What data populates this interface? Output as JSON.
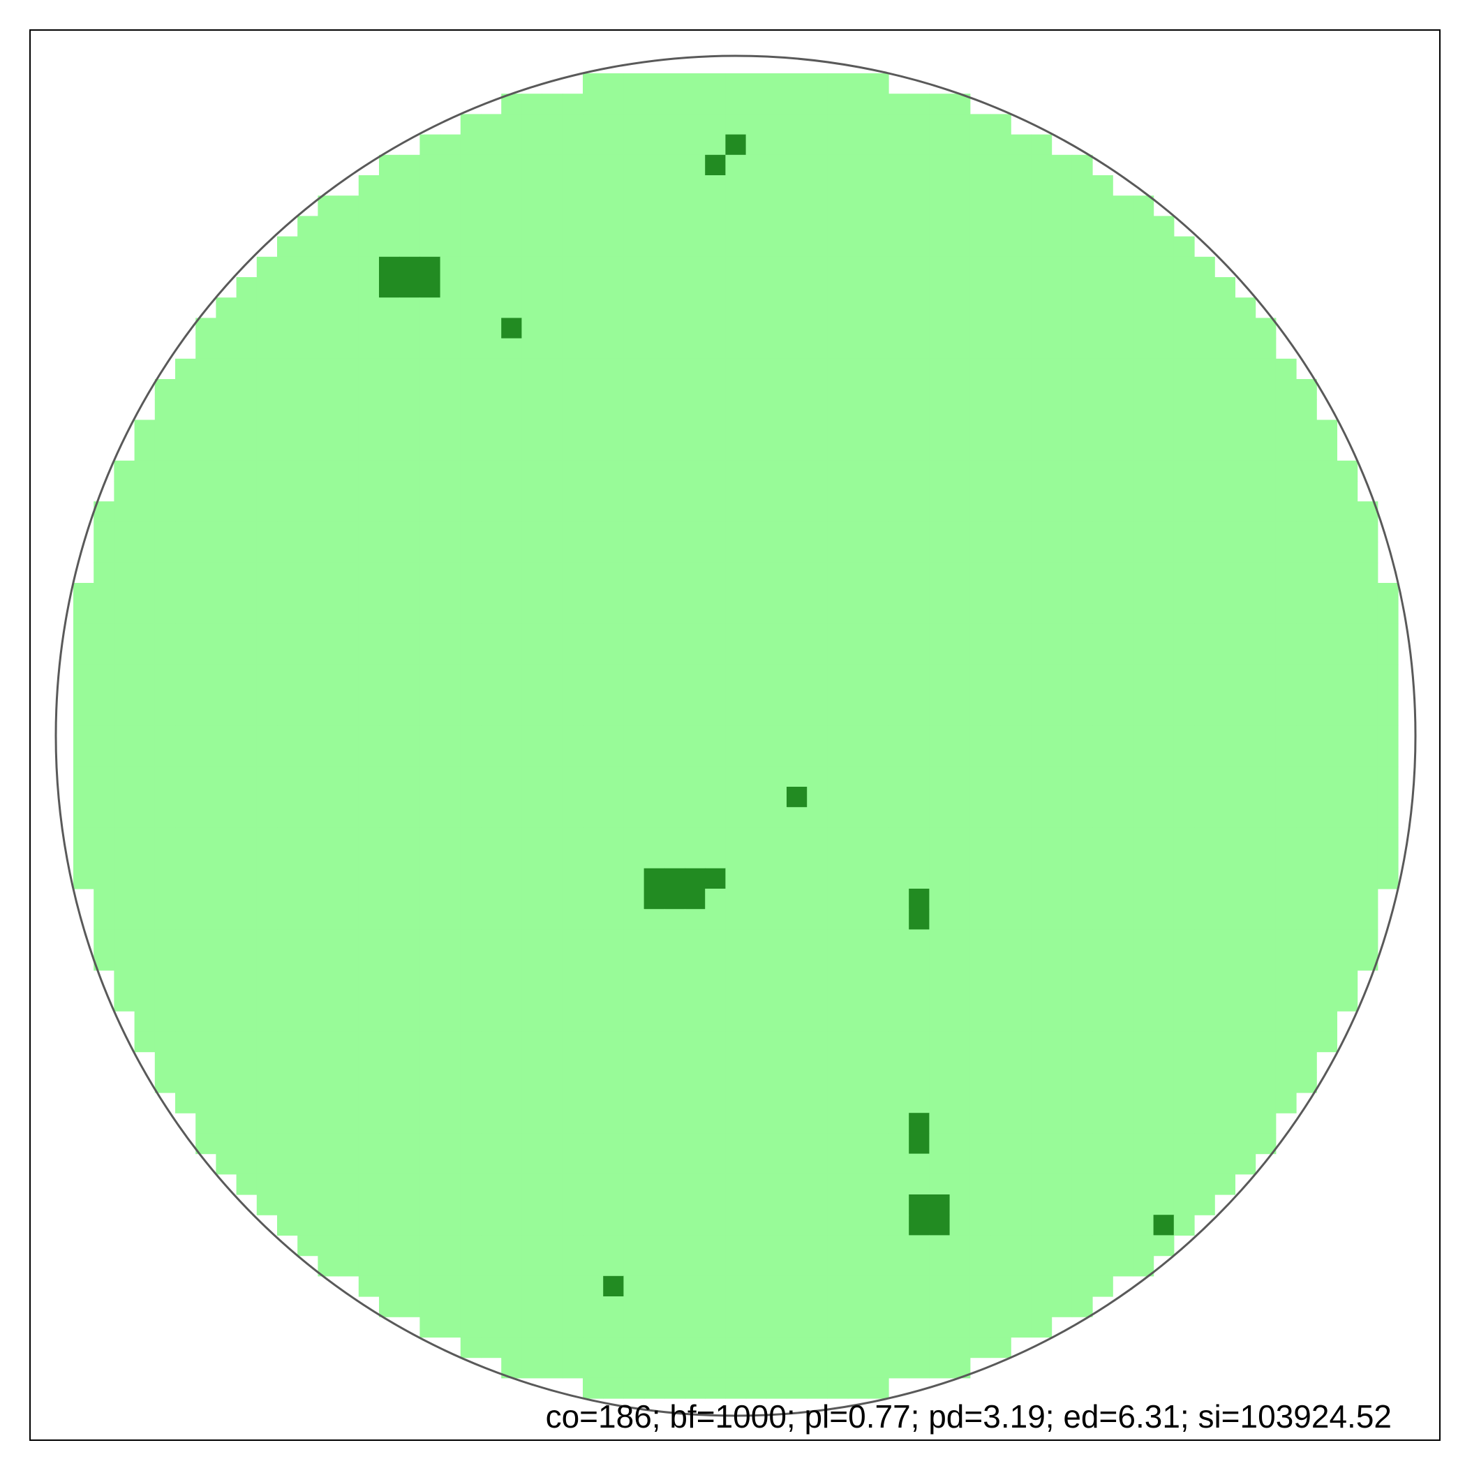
{
  "stats_text": "co=186; bf=1000; pl=0.77; pd=3.19; ed=6.31; si=103924.52",
  "colors": {
    "background": "#ffffff",
    "frame": "#000000",
    "wafer_outline": "#595959",
    "die_normal": "#98fb98",
    "die_defect": "#228b22",
    "text": "#000000"
  },
  "wafer_map": {
    "grid_cols": 67,
    "grid_rows": 67,
    "wafer_shape": "circle",
    "defect_dies": [
      [
        33,
        4
      ],
      [
        32,
        5
      ],
      [
        16,
        10
      ],
      [
        17,
        10
      ],
      [
        18,
        10
      ],
      [
        16,
        11
      ],
      [
        17,
        11
      ],
      [
        18,
        11
      ],
      [
        22,
        13
      ],
      [
        36,
        36
      ],
      [
        29,
        40
      ],
      [
        30,
        40
      ],
      [
        31,
        40
      ],
      [
        32,
        40
      ],
      [
        29,
        41
      ],
      [
        30,
        41
      ],
      [
        31,
        41
      ],
      [
        42,
        41
      ],
      [
        42,
        42
      ],
      [
        42,
        52
      ],
      [
        42,
        53
      ],
      [
        42,
        56
      ],
      [
        43,
        56
      ],
      [
        42,
        57
      ],
      [
        43,
        57
      ],
      [
        54,
        57
      ],
      [
        27,
        60
      ]
    ]
  }
}
